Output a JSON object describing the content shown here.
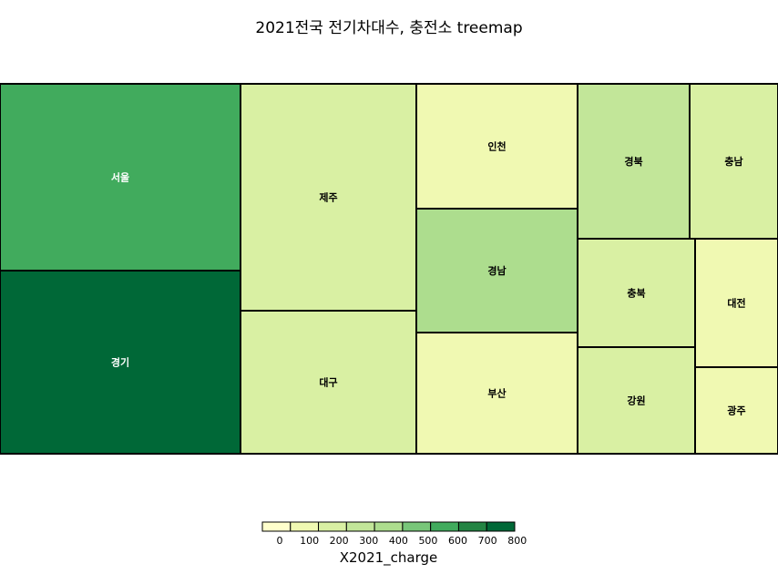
{
  "chart_data": {
    "type": "treemap",
    "title": "2021전국 전기차대수, 충전소 treemap",
    "color_by": "X2021_charge",
    "items": [
      {
        "label": "서울",
        "size": 32000,
        "charge": 650,
        "text_color": "#ffffff"
      },
      {
        "label": "경기",
        "size": 31500,
        "charge": 820,
        "text_color": "#ffffff"
      },
      {
        "label": "제주",
        "size": 29000,
        "charge": 230,
        "text_color": "#000000"
      },
      {
        "label": "대구",
        "size": 18500,
        "charge": 280,
        "text_color": "#000000"
      },
      {
        "label": "인천",
        "size": 14000,
        "charge": 170,
        "text_color": "#000000"
      },
      {
        "label": "경남",
        "size": 13000,
        "charge": 400,
        "text_color": "#000000"
      },
      {
        "label": "부산",
        "size": 12500,
        "charge": 160,
        "text_color": "#000000"
      },
      {
        "label": "경북",
        "size": 8300,
        "charge": 290,
        "text_color": "#000000"
      },
      {
        "label": "충남",
        "size": 6400,
        "charge": 210,
        "text_color": "#000000"
      },
      {
        "label": "충북",
        "size": 7000,
        "charge": 190,
        "text_color": "#000000"
      },
      {
        "label": "강원",
        "size": 7000,
        "charge": 210,
        "text_color": "#000000"
      },
      {
        "label": "대전",
        "size": 5000,
        "charge": 130,
        "text_color": "#000000"
      },
      {
        "label": "광주",
        "size": 3500,
        "charge": 110,
        "text_color": "#000000"
      }
    ],
    "legend": {
      "title": "X2021_charge",
      "ticks": [
        "0",
        "100",
        "200",
        "300",
        "400",
        "500",
        "600",
        "700",
        "800"
      ],
      "colors": [
        "#ffffcc",
        "#f0f9b2",
        "#d9f0a3",
        "#c2e699",
        "#addd8e",
        "#78c679",
        "#41ab5d",
        "#238443",
        "#006837"
      ],
      "min": 0,
      "max": 850
    }
  }
}
